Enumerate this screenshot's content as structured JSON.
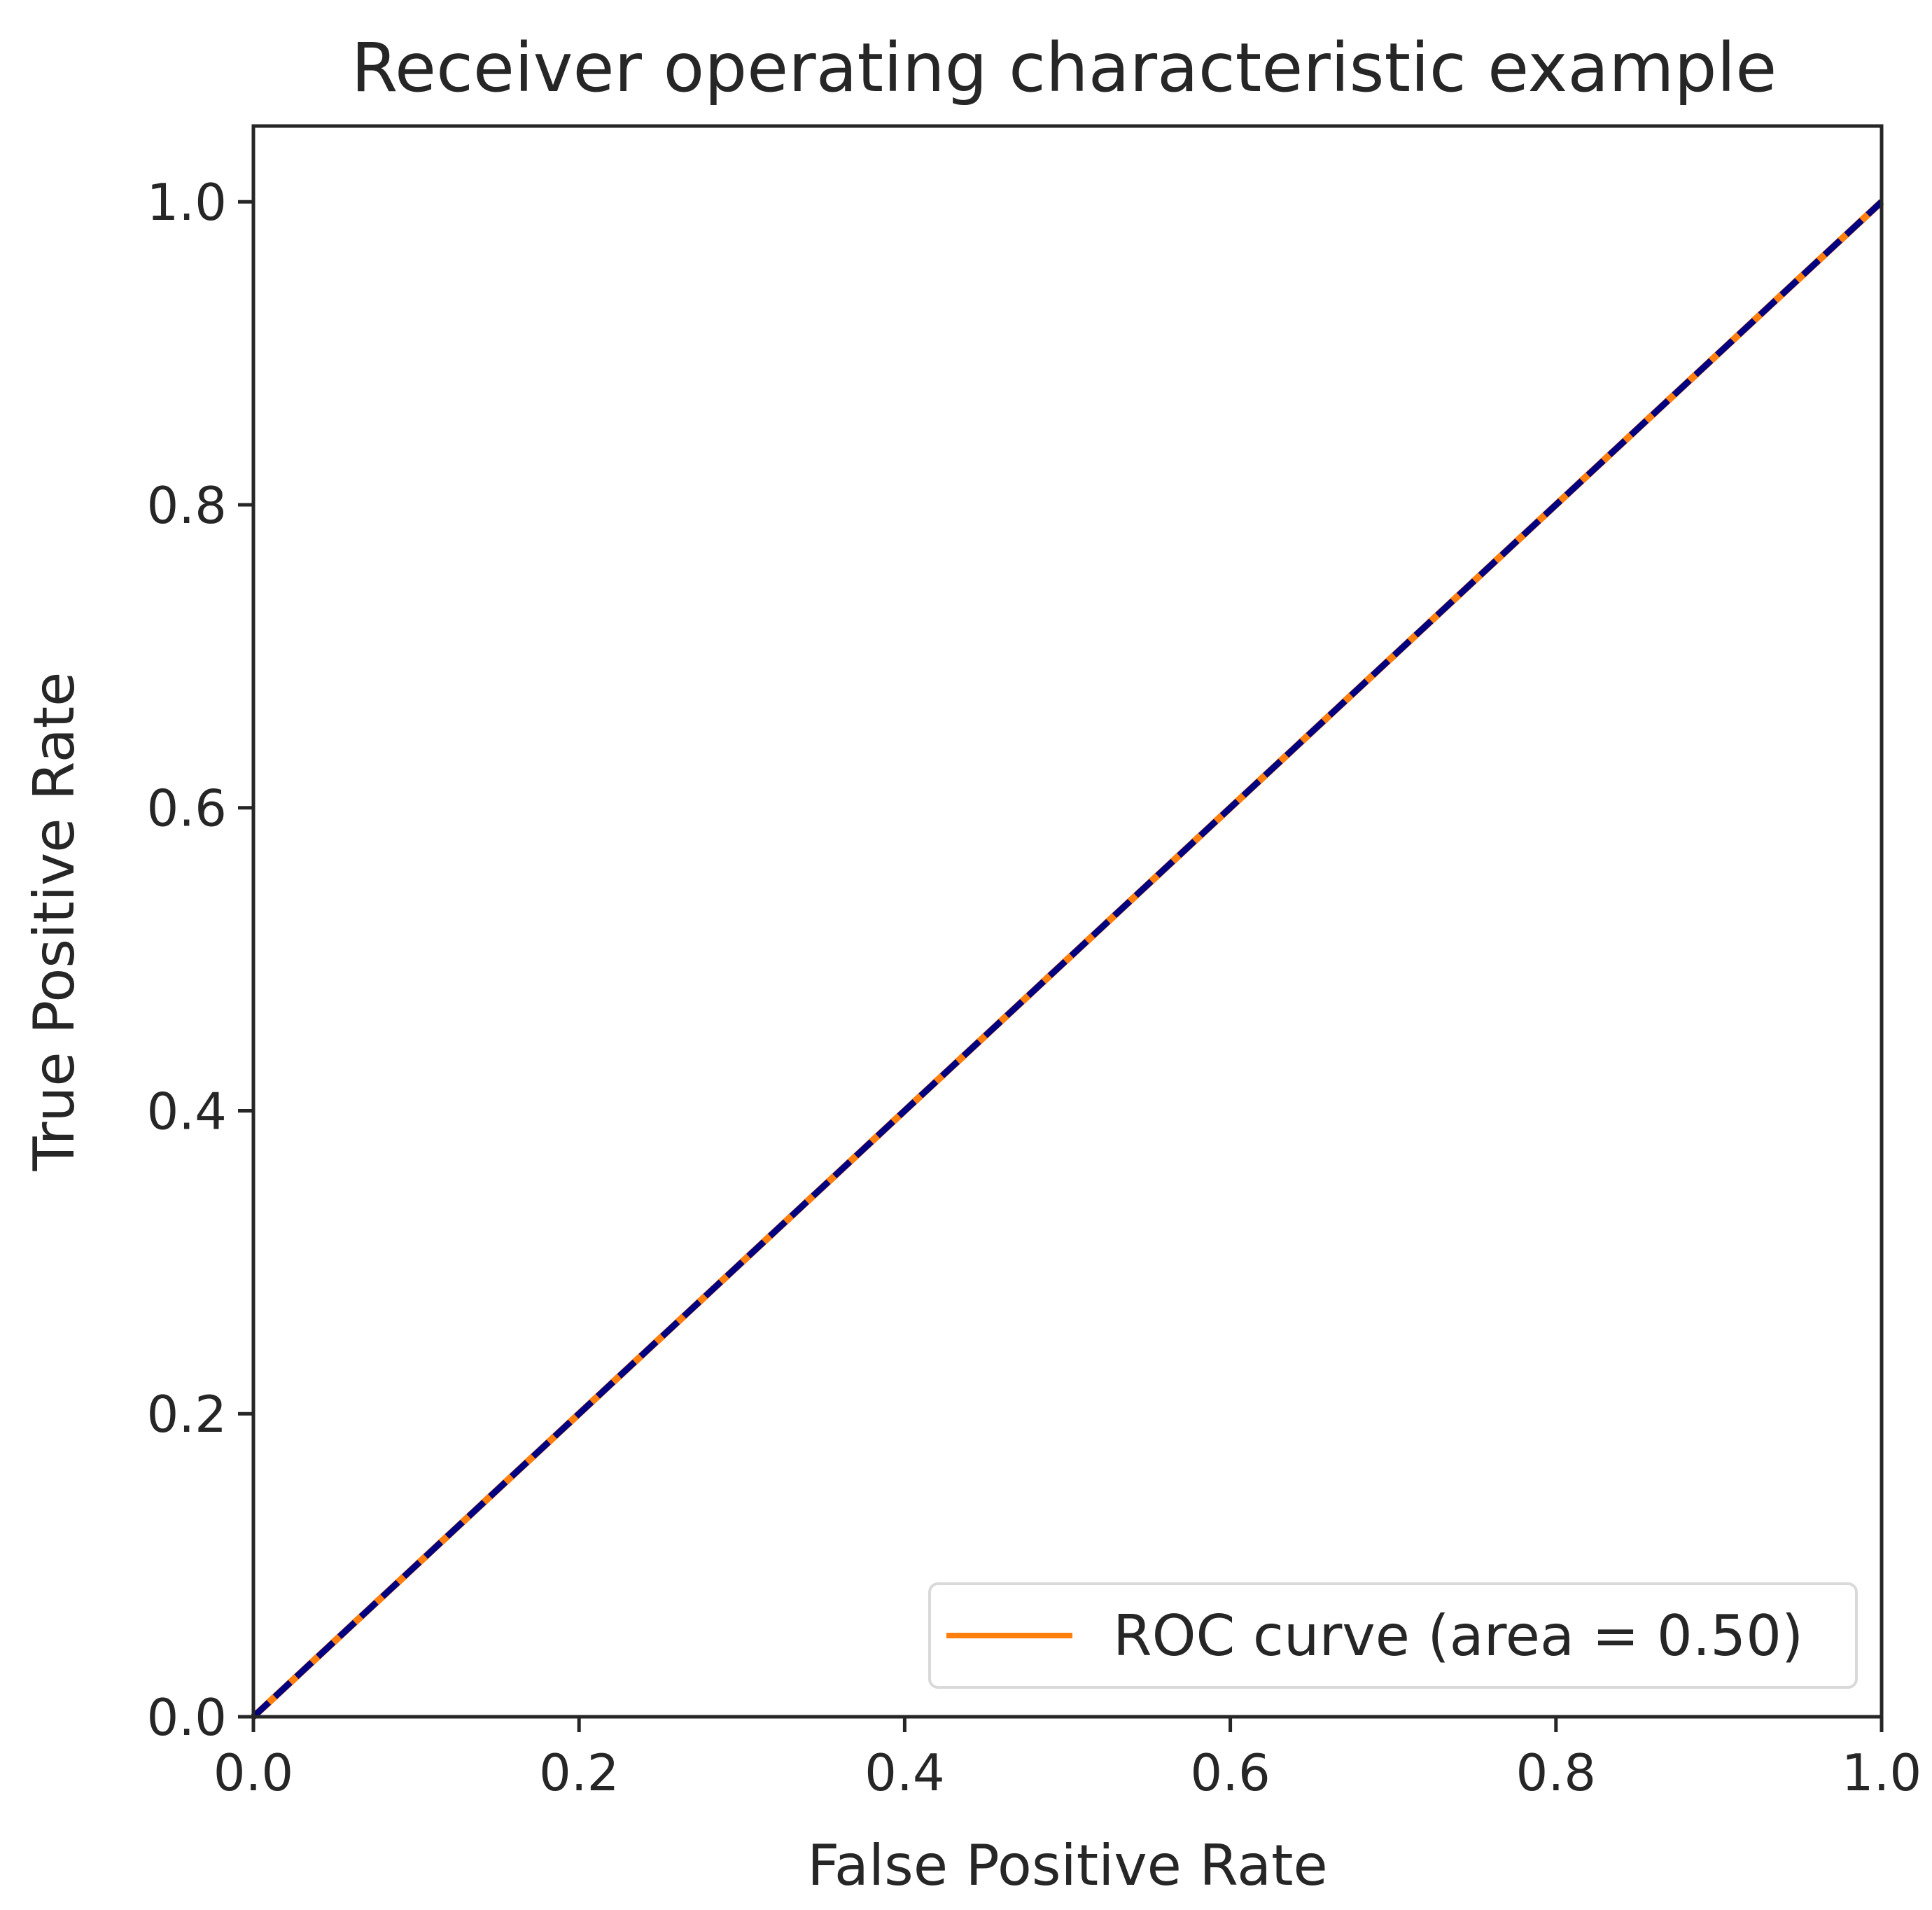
{
  "chart_data": {
    "type": "line",
    "title": "Receiver operating characteristic example",
    "xlabel": "False Positive Rate",
    "ylabel": "True Positive Rate",
    "xlim": [
      0.0,
      1.0
    ],
    "ylim": [
      0.0,
      1.05
    ],
    "xticks": [
      "0.0",
      "0.2",
      "0.4",
      "0.6",
      "0.8",
      "1.0"
    ],
    "yticks": [
      "0.0",
      "0.2",
      "0.4",
      "0.6",
      "0.8",
      "1.0"
    ],
    "grid": false,
    "legend_position": "lower-right",
    "series": [
      {
        "name": "ROC curve (area = 0.50)",
        "x": [
          0.0,
          1.0
        ],
        "y": [
          0.0,
          1.0
        ],
        "color": "#ff7f0e",
        "style": "solid",
        "in_legend": true
      },
      {
        "x": [
          0.0,
          1.0
        ],
        "y": [
          0.0,
          1.0
        ],
        "color": "#000080",
        "style": "dashed",
        "in_legend": false
      }
    ]
  }
}
